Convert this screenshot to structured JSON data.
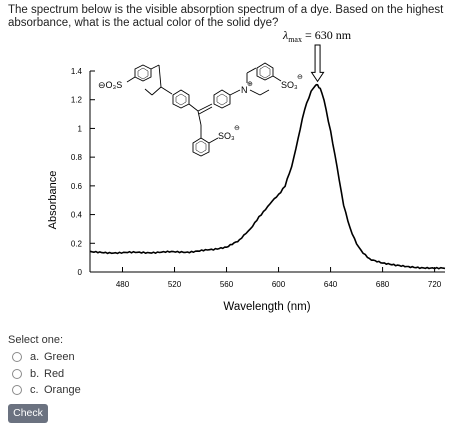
{
  "question": {
    "text": "The spectrum below is the visible absorption spectrum of a dye. Based on the highest absorbance, what is the actual color of the solid dye?"
  },
  "chart_data": {
    "type": "line",
    "title": "",
    "xlabel": "Wavelength (nm)",
    "ylabel": "Absorbance",
    "xlim": [
      455,
      728
    ],
    "ylim": [
      0,
      1.4
    ],
    "xticks": [
      480,
      520,
      560,
      600,
      640,
      680,
      720
    ],
    "yticks": [
      0,
      0.2,
      0.4,
      0.6,
      0.8,
      1,
      1.2,
      1.4
    ],
    "xtick_labels": [
      "480",
      "520",
      "560",
      "600",
      "640",
      "680",
      "720"
    ],
    "ytick_labels": [
      "0",
      "0.2",
      "0.4",
      "0.6",
      "0.8",
      "1",
      "1.2",
      "1.4"
    ],
    "grid": false,
    "annotation": {
      "symbol": "λ",
      "subscript": "max",
      "text": " = 630 nm",
      "x": 630
    },
    "series": [
      {
        "name": "",
        "x": [
          455,
          470,
          490,
          510,
          530,
          550,
          560,
          570,
          575,
          580,
          585,
          590,
          595,
          600,
          605,
          610,
          615,
          620,
          625,
          628,
          630,
          632,
          635,
          640,
          645,
          650,
          655,
          660,
          665,
          670,
          680,
          690,
          700,
          710,
          720,
          728
        ],
        "y": [
          0.14,
          0.135,
          0.135,
          0.138,
          0.14,
          0.155,
          0.17,
          0.22,
          0.27,
          0.32,
          0.38,
          0.44,
          0.49,
          0.54,
          0.6,
          0.73,
          0.93,
          1.13,
          1.26,
          1.3,
          1.3,
          1.28,
          1.2,
          0.98,
          0.73,
          0.47,
          0.3,
          0.2,
          0.13,
          0.09,
          0.06,
          0.045,
          0.035,
          0.03,
          0.03,
          0.025
        ]
      }
    ],
    "structure_labels": {
      "left_sulfonate": "⊖O₃S",
      "ammonium": "N",
      "ammonium_charge": "⊕",
      "right_sulfonate": "SO₃",
      "right_sulfonate_charge": "⊖",
      "lower_sulfonate": "SO₃",
      "lower_sulfonate_charge": "⊖"
    }
  },
  "answer": {
    "select_label": "Select one:",
    "options": [
      {
        "letter": "a.",
        "text": "Green"
      },
      {
        "letter": "b.",
        "text": "Red"
      },
      {
        "letter": "c.",
        "text": "Orange"
      }
    ]
  },
  "check_button": {
    "label": "Check"
  }
}
